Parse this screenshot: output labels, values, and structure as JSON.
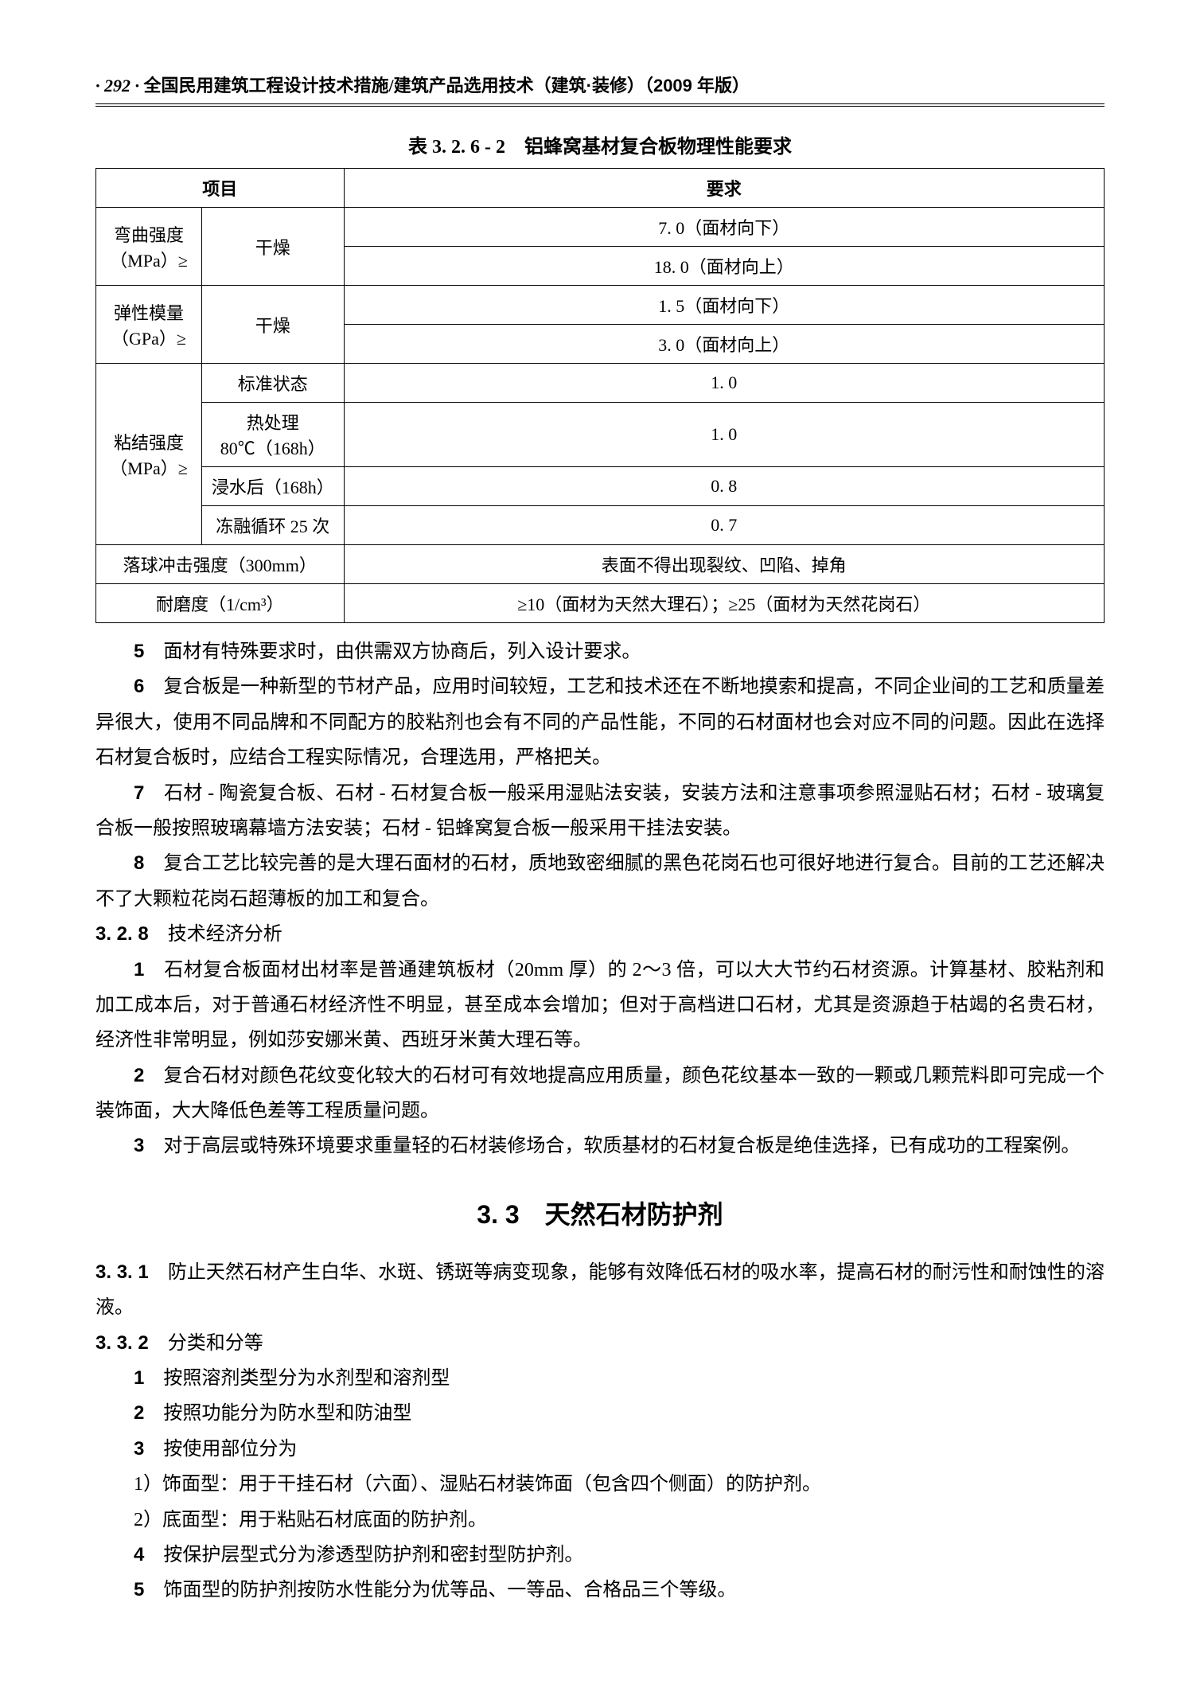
{
  "header": {
    "page_number": "· 292 ·",
    "title_text": "全国民用建筑工程设计技术措施/",
    "title_bold": "建筑产品选用技术（建筑·装修）（2009 年版）"
  },
  "table": {
    "caption": "表 3. 2. 6 - 2　铝蜂窝基材复合板物理性能要求",
    "header_left": "项目",
    "header_right": "要求",
    "rows": {
      "r1_label": "弯曲强度（MPa）≥",
      "r1_cond": "干燥",
      "r1_val_a": "7. 0（面材向下）",
      "r1_val_b": "18. 0（面材向上）",
      "r2_label": "弹性模量（GPa）≥",
      "r2_cond": "干燥",
      "r2_val_a": "1. 5（面材向下）",
      "r2_val_b": "3. 0（面材向上）",
      "r3_label": "粘结强度（MPa）≥",
      "r3_cond_a": "标准状态",
      "r3_val_a": "1. 0",
      "r3_cond_b": "热处理 80℃（168h）",
      "r3_val_b": "1. 0",
      "r3_cond_c": "浸水后（168h）",
      "r3_val_c": "0. 8",
      "r3_cond_d": "冻融循环 25 次",
      "r3_val_d": "0. 7",
      "r4_label": "落球冲击强度（300mm）",
      "r4_val": "表面不得出现裂纹、凹陷、掉角",
      "r5_label": "耐磨度（1/cm³）",
      "r5_val": "≥10（面材为天然大理石）；≥25（面材为天然花岗石）"
    }
  },
  "para": {
    "p5_num": "5",
    "p5": "面材有特殊要求时，由供需双方协商后，列入设计要求。",
    "p6_num": "6",
    "p6": "复合板是一种新型的节材产品，应用时间较短，工艺和技术还在不断地摸索和提高，不同企业间的工艺和质量差异很大，使用不同品牌和不同配方的胶粘剂也会有不同的产品性能，不同的石材面材也会对应不同的问题。因此在选择石材复合板时，应结合工程实际情况，合理选用，严格把关。",
    "p7_num": "7",
    "p7": "石材 - 陶瓷复合板、石材 - 石材复合板一般采用湿贴法安装，安装方法和注意事项参照湿贴石材；石材 - 玻璃复合板一般按照玻璃幕墙方法安装；石材 - 铝蜂窝复合板一般采用干挂法安装。",
    "p8_num": "8",
    "p8": "复合工艺比较完善的是大理石面材的石材，质地致密细腻的黑色花岗石也可很好地进行复合。目前的工艺还解决不了大颗粒花岗石超薄板的加工和复合。",
    "h328_num": "3. 2. 8",
    "h328": "技术经济分析",
    "e1_num": "1",
    "e1": "石材复合板面材出材率是普通建筑板材（20mm 厚）的 2～3 倍，可以大大节约石材资源。计算基材、胶粘剂和加工成本后，对于普通石材经济性不明显，甚至成本会增加；但对于高档进口石材，尤其是资源趋于枯竭的名贵石材，经济性非常明显，例如莎安娜米黄、西班牙米黄大理石等。",
    "e2_num": "2",
    "e2": "复合石材对颜色花纹变化较大的石材可有效地提高应用质量，颜色花纹基本一致的一颗或几颗荒料即可完成一个装饰面，大大降低色差等工程质量问题。",
    "e3_num": "3",
    "e3": "对于高层或特殊环境要求重量轻的石材装修场合，软质基材的石材复合板是绝佳选择，已有成功的工程案例。"
  },
  "section33_title": "3. 3　天然石材防护剂",
  "sec33": {
    "h331_num": "3. 3. 1",
    "h331": "防止天然石材产生白华、水斑、锈斑等病变现象，能够有效降低石材的吸水率，提高石材的耐污性和耐蚀性的溶液。",
    "h332_num": "3. 3. 2",
    "h332": "分类和分等",
    "c1_num": "1",
    "c1": "按照溶剂类型分为水剂型和溶剂型",
    "c2_num": "2",
    "c2": "按照功能分为防水型和防油型",
    "c3_num": "3",
    "c3": "按使用部位分为",
    "c3a": "1）饰面型：用于干挂石材（六面）、湿贴石材装饰面（包含四个侧面）的防护剂。",
    "c3b": "2）底面型：用于粘贴石材底面的防护剂。",
    "c4_num": "4",
    "c4": "按保护层型式分为渗透型防护剂和密封型防护剂。",
    "c5_num": "5",
    "c5": "饰面型的防护剂按防水性能分为优等品、一等品、合格品三个等级。"
  }
}
